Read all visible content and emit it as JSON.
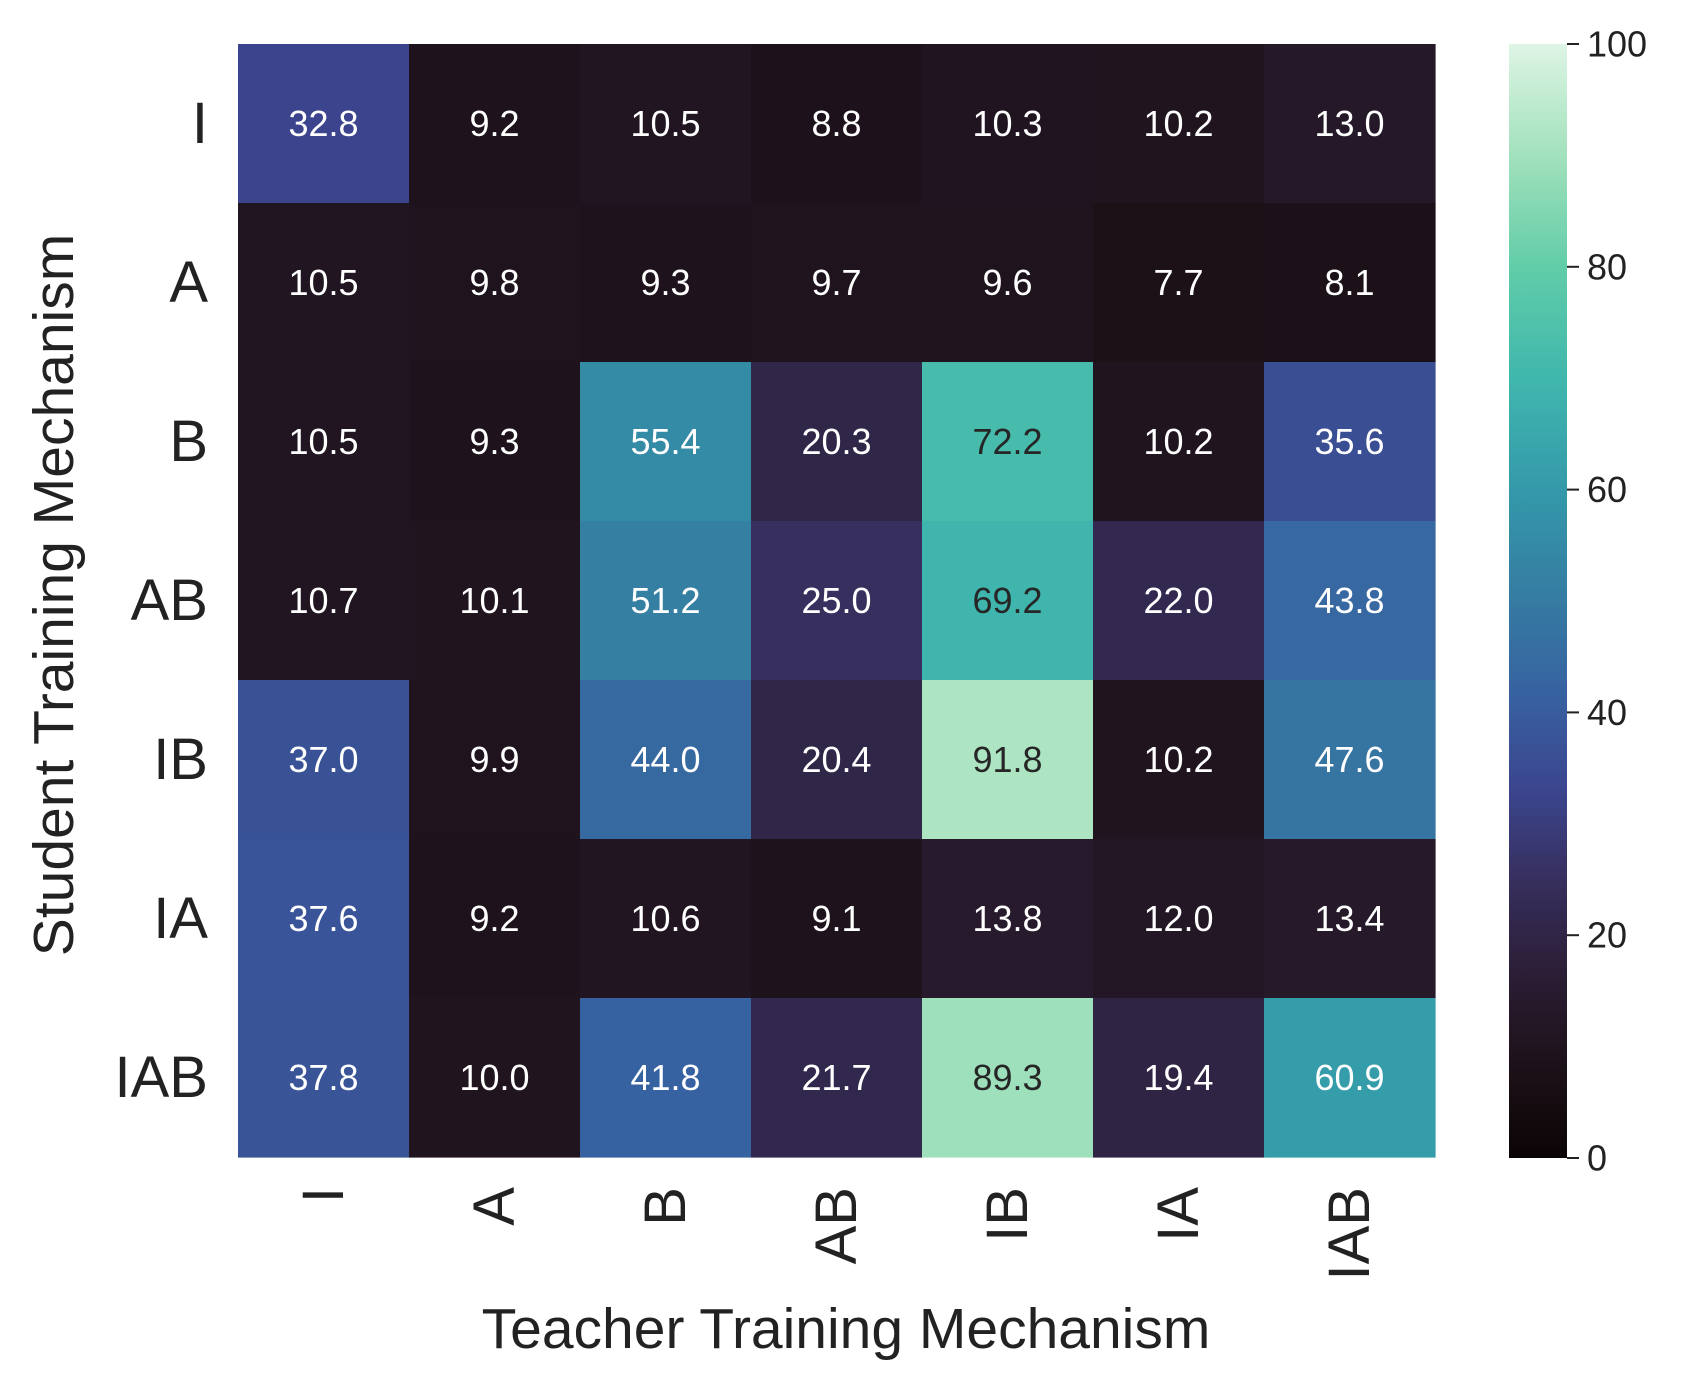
{
  "chart_data": {
    "type": "heatmap",
    "title": "",
    "xlabel": "Teacher Training Mechanism",
    "ylabel": "Student Training Mechanism",
    "x_categories": [
      "I",
      "A",
      "B",
      "AB",
      "IB",
      "IA",
      "IAB"
    ],
    "y_categories": [
      "I",
      "A",
      "B",
      "AB",
      "IB",
      "IA",
      "IAB"
    ],
    "values": [
      [
        32.8,
        9.2,
        10.5,
        8.8,
        10.3,
        10.2,
        13.0
      ],
      [
        10.5,
        9.8,
        9.3,
        9.7,
        9.6,
        7.7,
        8.1
      ],
      [
        10.5,
        9.3,
        55.4,
        20.3,
        72.2,
        10.2,
        35.6
      ],
      [
        10.7,
        10.1,
        51.2,
        25.0,
        69.2,
        22.0,
        43.8
      ],
      [
        37.0,
        9.9,
        44.0,
        20.4,
        91.8,
        10.2,
        47.6
      ],
      [
        37.6,
        9.2,
        10.6,
        9.1,
        13.8,
        12.0,
        13.4
      ],
      [
        37.8,
        10.0,
        41.8,
        21.7,
        89.3,
        19.4,
        60.9
      ]
    ],
    "value_format": "0.1f",
    "colorbar": {
      "range": [
        0,
        100
      ],
      "ticks": [
        0,
        20,
        40,
        60,
        80,
        100
      ],
      "colormap": "mako",
      "position": "right"
    }
  }
}
